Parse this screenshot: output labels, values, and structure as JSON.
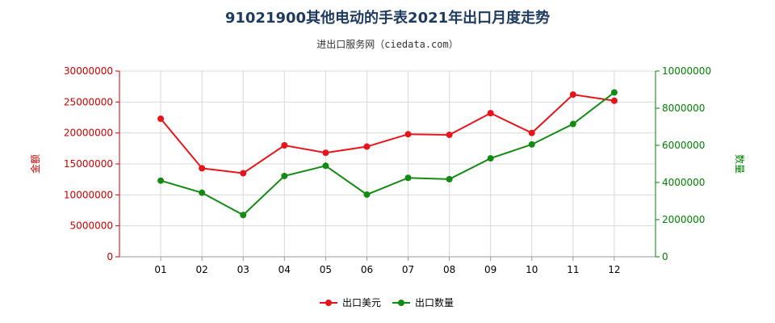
{
  "header": {
    "title": "91021900其他电动的手表2021年出口月度走势",
    "subtitle": "进出口服务网（ciedata.com）"
  },
  "chart_data": {
    "type": "line",
    "title": "91021900其他电动的手表2021年出口月度走势",
    "subtitle": "进出口服务网（ciedata.com）",
    "categories": [
      "01",
      "02",
      "03",
      "04",
      "05",
      "06",
      "07",
      "08",
      "09",
      "10",
      "11",
      "12"
    ],
    "series": [
      {
        "name": "出口美元",
        "axis": "left",
        "color": "#e8141b",
        "values": [
          22300000,
          14300000,
          13500000,
          18000000,
          16800000,
          17800000,
          19800000,
          19700000,
          23200000,
          20000000,
          26200000,
          25200000
        ]
      },
      {
        "name": "出口数量",
        "axis": "right",
        "color": "#138a13",
        "values": [
          4100000,
          3450000,
          2250000,
          4350000,
          4900000,
          3350000,
          4250000,
          4180000,
          5300000,
          6050000,
          7150000,
          8850000
        ]
      }
    ],
    "ylabel_left": "金额",
    "ylabel_right": "数量",
    "ylim_left": [
      0,
      30000000
    ],
    "ylim_right": [
      0,
      10000000
    ],
    "yticks_left": [
      "0",
      "5000000",
      "10000000",
      "15000000",
      "20000000",
      "25000000",
      "30000000"
    ],
    "yticks_right": [
      "0",
      "2000000",
      "4000000",
      "6000000",
      "8000000",
      "10000000"
    ],
    "grid": true,
    "legend_position": "bottom-center"
  }
}
